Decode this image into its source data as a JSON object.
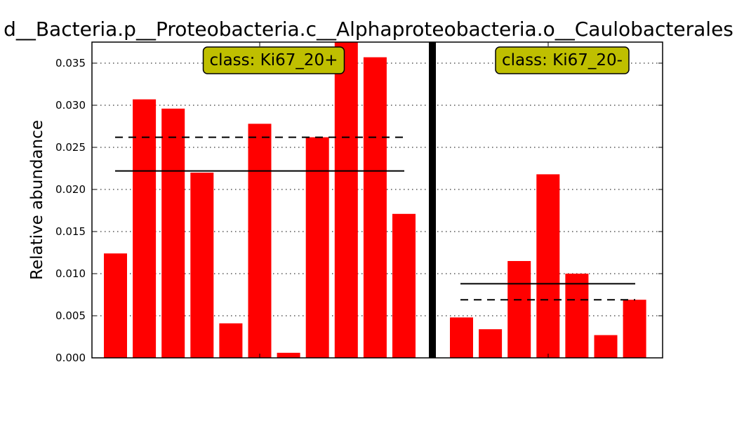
{
  "chart_data": {
    "type": "bar",
    "title": "d__Bacteria.p__Proteobacteria.c__Alphaproteobacteria.o__Caulobacterales",
    "xlabel": "",
    "ylabel": "Relative abundance",
    "ylim": [
      0,
      0.0375
    ],
    "yticks": [
      "0.000",
      "0.005",
      "0.010",
      "0.015",
      "0.020",
      "0.025",
      "0.030",
      "0.035"
    ],
    "grid": "horizontal dotted",
    "bar_color": "#ff0000",
    "label_box_color": "#bfbf00",
    "groups": [
      {
        "name": "class: Ki67_20+",
        "values": [
          0.0124,
          0.0307,
          0.0296,
          0.022,
          0.0041,
          0.0278,
          0.0006,
          0.0262,
          0.038,
          0.0357,
          0.0171
        ],
        "mean": 0.0222,
        "median": 0.0262
      },
      {
        "name": "class: Ki67_20-",
        "values": [
          0.0048,
          0.0034,
          0.0115,
          0.0218,
          0.01,
          0.0027,
          0.0069
        ],
        "mean": 0.0088,
        "median": 0.0069
      }
    ]
  }
}
